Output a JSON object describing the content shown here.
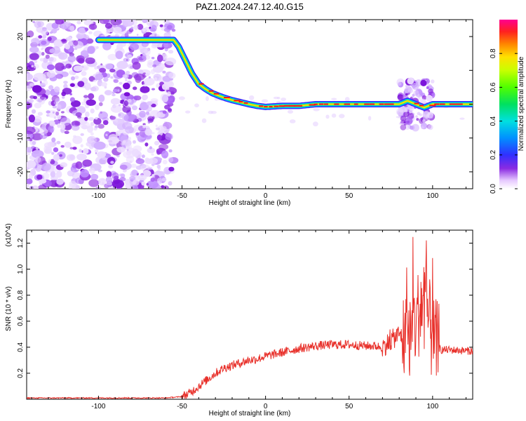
{
  "title": "PAZ1.2024.247.12.40.G15",
  "chart_data": [
    {
      "type": "heatmap",
      "name": "spectrogram",
      "xlabel": "Height of straight line (km)",
      "ylabel": "Frequency (Hz)",
      "xlim": [
        -143,
        124
      ],
      "ylim": [
        -25,
        25
      ],
      "x_ticks": [
        -100,
        -50,
        0,
        50,
        100
      ],
      "y_ticks": [
        -20,
        -10,
        0,
        10,
        20
      ],
      "colorbar": {
        "label": "Normalized spectral amplitude",
        "range": [
          0,
          1
        ],
        "ticks": [
          0.0,
          0.2,
          0.4,
          0.6,
          0.8
        ]
      },
      "ridge": {
        "x": [
          -100,
          -95,
          -75,
          -60,
          -55,
          -52,
          -48,
          -44,
          -40,
          -36,
          -32,
          -28,
          -24,
          -20,
          -15,
          -10,
          -5,
          0,
          10,
          20,
          30,
          40,
          50,
          60,
          65,
          70,
          80,
          85,
          90,
          95,
          100,
          110,
          124
        ],
        "y": [
          19,
          19,
          19,
          19,
          19,
          17,
          13,
          9,
          6,
          4.5,
          3.3,
          2.5,
          1.8,
          1.2,
          0.6,
          0,
          -0.5,
          -0.8,
          -0.5,
          -0.5,
          0,
          0,
          0,
          0,
          0,
          0,
          0,
          1,
          0,
          -1,
          0,
          0,
          0
        ]
      },
      "noise_region_x": [
        -143,
        -55
      ],
      "disturbance_x": [
        80,
        100
      ]
    },
    {
      "type": "line",
      "name": "snr",
      "xlabel": "Height of straight line (km)",
      "ylabel": "SNR (10 * v/v)",
      "y_multiplier": "(x10^4)",
      "xlim": [
        -143,
        124
      ],
      "ylim": [
        0,
        1.3
      ],
      "x_ticks": [
        -100,
        -50,
        0,
        50,
        100
      ],
      "y_ticks": [
        0.2,
        0.4,
        0.6,
        0.8,
        1.0,
        1.2
      ],
      "series": [
        {
          "color": "#e8302a",
          "x": [
            -143,
            -100,
            -60,
            -50,
            -45,
            -40,
            -35,
            -30,
            -25,
            -20,
            -15,
            -10,
            -5,
            0,
            10,
            20,
            30,
            40,
            50,
            60,
            65,
            70,
            75,
            80,
            85,
            90,
            95,
            100,
            105,
            110,
            124
          ],
          "y": [
            0.01,
            0.01,
            0.01,
            0.02,
            0.05,
            0.1,
            0.15,
            0.2,
            0.24,
            0.26,
            0.28,
            0.3,
            0.31,
            0.33,
            0.36,
            0.39,
            0.41,
            0.42,
            0.42,
            0.41,
            0.41,
            0.4,
            0.45,
            0.5,
            0.45,
            0.6,
            0.8,
            0.45,
            0.38,
            0.38,
            0.37
          ]
        }
      ]
    }
  ]
}
